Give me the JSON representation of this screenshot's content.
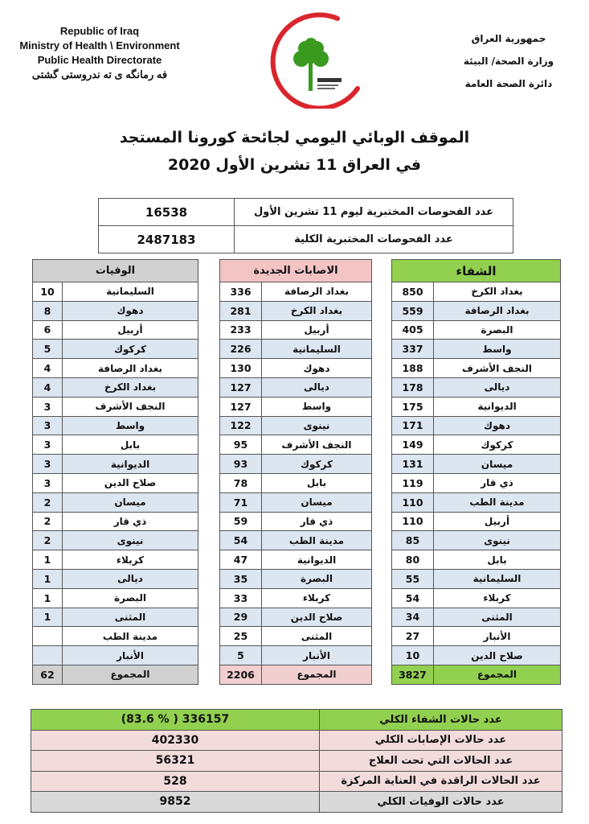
{
  "header": {
    "en": [
      "Republic of Iraq",
      "Ministry of Health \\ Environment",
      "Public Health Directorate",
      "فه رمانگه ی ته ندروستی گشتی"
    ],
    "ar": [
      "جمهورية العراق",
      "وزارة الصحة/ البيئة",
      "دائرة الصحة العامة"
    ]
  },
  "title": {
    "line1": "الموقف الوبائي اليومي لجائحة كورونا المستجد",
    "line2": "في العراق  11  تشرين الأول 2020"
  },
  "tests": [
    {
      "label": "عدد الفحوصات المختبرية  ليوم 11 تشرين الأول",
      "value": "16538"
    },
    {
      "label": "عدد الفحوصات المختبرية الكلية",
      "value": "2487183"
    }
  ],
  "recovered": {
    "header": "الشفاء",
    "rows": [
      [
        "بغداد الكرخ",
        "850"
      ],
      [
        "بغداد الرصافة",
        "559"
      ],
      [
        "البصرة",
        "405"
      ],
      [
        "واسط",
        "337"
      ],
      [
        "النجف الأشرف",
        "188"
      ],
      [
        "ديالى",
        "178"
      ],
      [
        "الديوانية",
        "175"
      ],
      [
        "دهوك",
        "171"
      ],
      [
        "كركوك",
        "149"
      ],
      [
        "ميسان",
        "131"
      ],
      [
        "ذي قار",
        "119"
      ],
      [
        "مدينة الطب",
        "110"
      ],
      [
        "أربيل",
        "110"
      ],
      [
        "نينوى",
        "85"
      ],
      [
        "بابل",
        "80"
      ],
      [
        "السليمانية",
        "55"
      ],
      [
        "كربلاء",
        "54"
      ],
      [
        "المثنى",
        "34"
      ],
      [
        "الأنبار",
        "27"
      ],
      [
        "صلاح الدين",
        "10"
      ]
    ],
    "total_label": "المجموع",
    "total": "3827"
  },
  "cases": {
    "header": "الاصابات الجديدة",
    "rows": [
      [
        "بغداد الرصافة",
        "336"
      ],
      [
        "بغداد الكرخ",
        "281"
      ],
      [
        "أربيل",
        "233"
      ],
      [
        "السليمانية",
        "226"
      ],
      [
        "دهوك",
        "130"
      ],
      [
        "ديالى",
        "127"
      ],
      [
        "واسط",
        "127"
      ],
      [
        "نينوى",
        "122"
      ],
      [
        "النجف الأشرف",
        "95"
      ],
      [
        "كركوك",
        "93"
      ],
      [
        "بابل",
        "78"
      ],
      [
        "ميسان",
        "71"
      ],
      [
        "ذي قار",
        "59"
      ],
      [
        "مدينة الطب",
        "54"
      ],
      [
        "الديوانية",
        "47"
      ],
      [
        "البصرة",
        "35"
      ],
      [
        "كربلاء",
        "33"
      ],
      [
        "صلاح الدين",
        "29"
      ],
      [
        "المثنى",
        "25"
      ],
      [
        "الأنبار",
        "5"
      ]
    ],
    "total_label": "المجموع",
    "total": "2206"
  },
  "deaths": {
    "header": "الوفيات",
    "rows": [
      [
        "السليمانية",
        "10"
      ],
      [
        "دهوك",
        "8"
      ],
      [
        "أربيل",
        "6"
      ],
      [
        "كركوك",
        "5"
      ],
      [
        "بغداد الرصافة",
        "4"
      ],
      [
        "بغداد الكرخ",
        "4"
      ],
      [
        "النجف الأشرف",
        "3"
      ],
      [
        "واسط",
        "3"
      ],
      [
        "بابل",
        "3"
      ],
      [
        "الديوانية",
        "3"
      ],
      [
        "صلاح الدين",
        "3"
      ],
      [
        "ميسان",
        "2"
      ],
      [
        "ذي قار",
        "2"
      ],
      [
        "نينوى",
        "2"
      ],
      [
        "كربلاء",
        "1"
      ],
      [
        "ديالى",
        "1"
      ],
      [
        "البصرة",
        "1"
      ],
      [
        "المثنى",
        "1"
      ],
      [
        "مدينة الطب",
        ""
      ],
      [
        "الأنبار",
        ""
      ]
    ],
    "total_label": "المجموع",
    "total": "62"
  },
  "summary": [
    {
      "label": "عدد حالات الشفاء الكلي",
      "value": "(83.6 % )   336157",
      "color": "#92d050"
    },
    {
      "label": "عدد حالات الإصابات الكلي",
      "value": "402330",
      "color": "#f2dcdb"
    },
    {
      "label": "عدد الحالات التي تحت العلاج",
      "value": "56321",
      "color": "#f2dcdb"
    },
    {
      "label": "عدد الحالات الراقدة في العناية المركزة",
      "value": "528",
      "color": "#f2dcdb"
    },
    {
      "label": "عدد حالات الوفيات الكلي",
      "value": "9852",
      "color": "#d9d9d9"
    }
  ],
  "colors": {
    "recovered": "#92d050",
    "cases": "#f2c4c4",
    "deaths": "#d0d0d0",
    "row_alt": "#dce6f1",
    "logo_arc": "#d9262c",
    "logo_tree": "#3a9a1f"
  }
}
